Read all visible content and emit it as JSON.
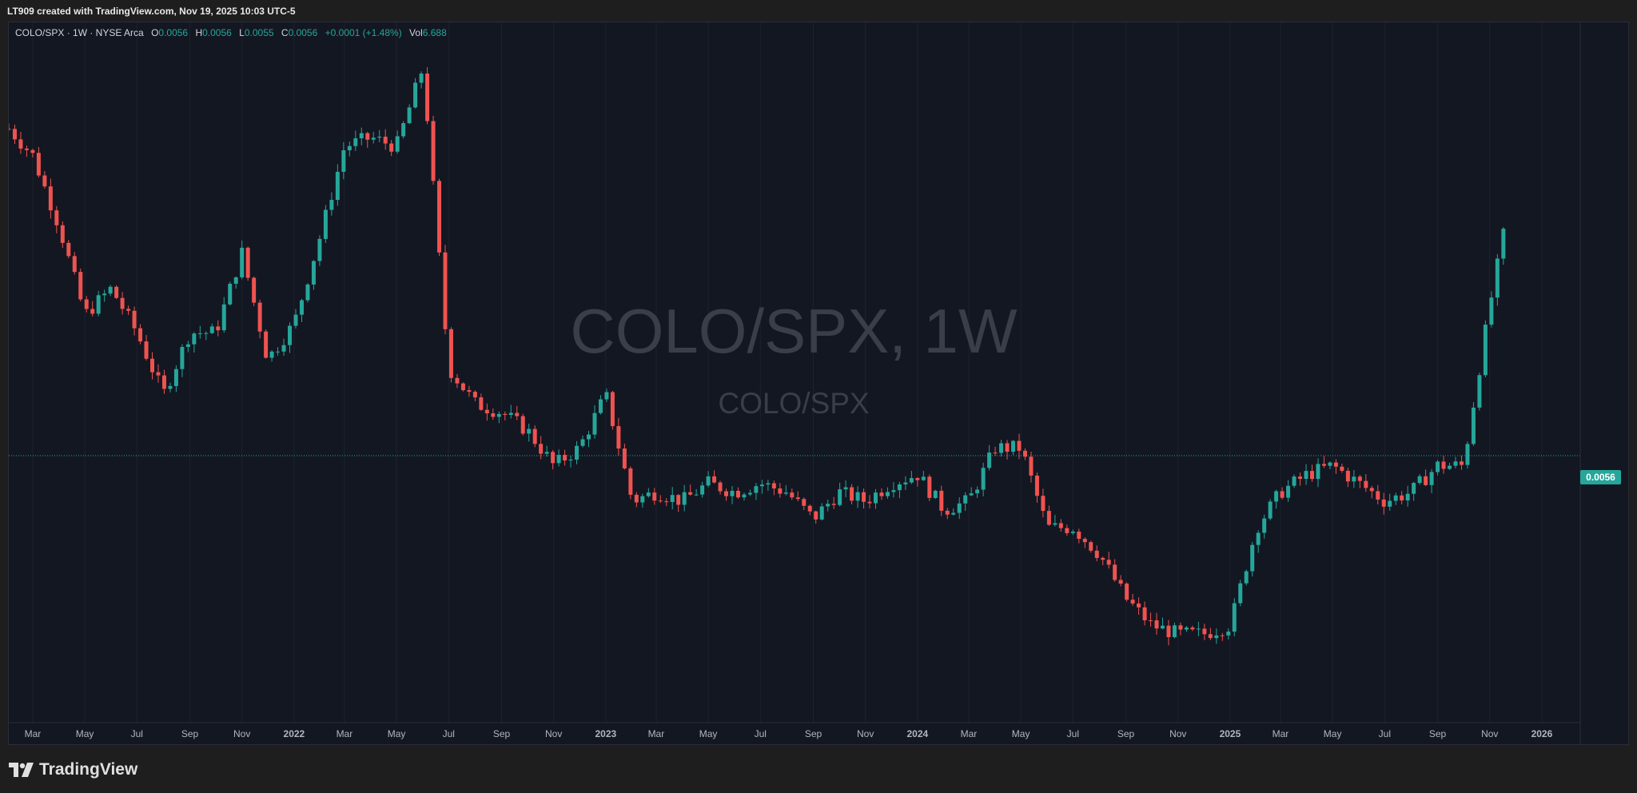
{
  "attribution": "LT909 created with TradingView.com, Nov 19, 2025 10:03 UTC-5",
  "legend": {
    "symbol": "COLO/SPX · 1W · NYSE Arca",
    "o_label": "O",
    "o_value": "0.0056",
    "h_label": "H",
    "h_value": "0.0056",
    "l_label": "L",
    "l_value": "0.0055",
    "c_label": "C",
    "c_value": "0.0056",
    "change": "+0.0001 (+1.48%)",
    "vol_label": "Vol",
    "vol_value": "6.688"
  },
  "watermark": {
    "title": "COLO/SPX, 1W",
    "subtitle": "COLO/SPX"
  },
  "current_price_label": "0.0056",
  "brand": "TradingView",
  "colors": {
    "up": "#26a69a",
    "down": "#ef5350",
    "background": "#131722",
    "grid": "#1e222d",
    "axis_text": "#b2b5be"
  },
  "chart_data": {
    "type": "candlestick",
    "interval": "1W",
    "x_range": [
      "2021-02-01",
      "2026-02-15"
    ],
    "y_range": [
      0.00505,
      0.00584
    ],
    "last_price": 0.0056,
    "x_ticks": [
      {
        "date": "2021-03-01",
        "label": "Mar"
      },
      {
        "date": "2021-05-01",
        "label": "May"
      },
      {
        "date": "2021-07-01",
        "label": "Jul"
      },
      {
        "date": "2021-09-01",
        "label": "Sep"
      },
      {
        "date": "2021-11-01",
        "label": "Nov"
      },
      {
        "date": "2022-01-01",
        "label": "2022"
      },
      {
        "date": "2022-03-01",
        "label": "Mar"
      },
      {
        "date": "2022-05-01",
        "label": "May"
      },
      {
        "date": "2022-07-01",
        "label": "Jul"
      },
      {
        "date": "2022-09-01",
        "label": "Sep"
      },
      {
        "date": "2022-11-01",
        "label": "Nov"
      },
      {
        "date": "2023-01-01",
        "label": "2023"
      },
      {
        "date": "2023-03-01",
        "label": "Mar"
      },
      {
        "date": "2023-05-01",
        "label": "May"
      },
      {
        "date": "2023-07-01",
        "label": "Jul"
      },
      {
        "date": "2023-09-01",
        "label": "Sep"
      },
      {
        "date": "2023-11-01",
        "label": "Nov"
      },
      {
        "date": "2024-01-01",
        "label": "2024"
      },
      {
        "date": "2024-03-01",
        "label": "Mar"
      },
      {
        "date": "2024-05-01",
        "label": "May"
      },
      {
        "date": "2024-07-01",
        "label": "Jul"
      },
      {
        "date": "2024-09-01",
        "label": "Sep"
      },
      {
        "date": "2024-11-01",
        "label": "Nov"
      },
      {
        "date": "2025-01-01",
        "label": "2025"
      },
      {
        "date": "2025-03-01",
        "label": "Mar"
      },
      {
        "date": "2025-05-01",
        "label": "May"
      },
      {
        "date": "2025-07-01",
        "label": "Jul"
      },
      {
        "date": "2025-09-01",
        "label": "Sep"
      },
      {
        "date": "2025-11-01",
        "label": "Nov"
      },
      {
        "date": "2026-01-01",
        "label": "2026"
      }
    ],
    "closes": [
      {
        "date": "2021-02-01",
        "value": 0.00572
      },
      {
        "date": "2021-03-01",
        "value": 0.00569
      },
      {
        "date": "2021-04-01",
        "value": 0.00561
      },
      {
        "date": "2021-05-01",
        "value": 0.00551
      },
      {
        "date": "2021-06-01",
        "value": 0.00554
      },
      {
        "date": "2021-07-01",
        "value": 0.00549
      },
      {
        "date": "2021-08-01",
        "value": 0.00542
      },
      {
        "date": "2021-09-01",
        "value": 0.00549
      },
      {
        "date": "2021-10-01",
        "value": 0.00549
      },
      {
        "date": "2021-11-01",
        "value": 0.00558
      },
      {
        "date": "2021-12-01",
        "value": 0.00546
      },
      {
        "date": "2022-01-01",
        "value": 0.0055
      },
      {
        "date": "2022-02-01",
        "value": 0.0056
      },
      {
        "date": "2022-03-01",
        "value": 0.0057
      },
      {
        "date": "2022-04-01",
        "value": 0.00571
      },
      {
        "date": "2022-05-01",
        "value": 0.0057
      },
      {
        "date": "2022-06-01",
        "value": 0.00579
      },
      {
        "date": "2022-07-01",
        "value": 0.00545
      },
      {
        "date": "2022-08-01",
        "value": 0.00541
      },
      {
        "date": "2022-09-01",
        "value": 0.0054
      },
      {
        "date": "2022-10-01",
        "value": 0.00538
      },
      {
        "date": "2022-11-01",
        "value": 0.00534
      },
      {
        "date": "2022-12-01",
        "value": 0.00536
      },
      {
        "date": "2023-01-01",
        "value": 0.00542
      },
      {
        "date": "2023-02-01",
        "value": 0.0053
      },
      {
        "date": "2023-03-01",
        "value": 0.00531
      },
      {
        "date": "2023-04-01",
        "value": 0.0053
      },
      {
        "date": "2023-05-01",
        "value": 0.00532
      },
      {
        "date": "2023-06-01",
        "value": 0.00531
      },
      {
        "date": "2023-07-01",
        "value": 0.00532
      },
      {
        "date": "2023-08-01",
        "value": 0.00531
      },
      {
        "date": "2023-09-01",
        "value": 0.00528
      },
      {
        "date": "2023-10-01",
        "value": 0.00531
      },
      {
        "date": "2023-11-01",
        "value": 0.0053
      },
      {
        "date": "2023-12-01",
        "value": 0.00532
      },
      {
        "date": "2024-01-01",
        "value": 0.00533
      },
      {
        "date": "2024-02-01",
        "value": 0.00529
      },
      {
        "date": "2024-03-01",
        "value": 0.0053
      },
      {
        "date": "2024-04-01",
        "value": 0.00536
      },
      {
        "date": "2024-05-01",
        "value": 0.00536
      },
      {
        "date": "2024-06-01",
        "value": 0.00527
      },
      {
        "date": "2024-07-01",
        "value": 0.00527
      },
      {
        "date": "2024-08-01",
        "value": 0.00524
      },
      {
        "date": "2024-09-01",
        "value": 0.00519
      },
      {
        "date": "2024-10-01",
        "value": 0.00516
      },
      {
        "date": "2024-11-01",
        "value": 0.00515
      },
      {
        "date": "2024-12-01",
        "value": 0.00515
      },
      {
        "date": "2025-01-01",
        "value": 0.00516
      },
      {
        "date": "2025-02-01",
        "value": 0.00527
      },
      {
        "date": "2025-03-01",
        "value": 0.00531
      },
      {
        "date": "2025-04-01",
        "value": 0.00533
      },
      {
        "date": "2025-05-01",
        "value": 0.00534
      },
      {
        "date": "2025-06-01",
        "value": 0.00532
      },
      {
        "date": "2025-07-01",
        "value": 0.0053
      },
      {
        "date": "2025-08-01",
        "value": 0.00531
      },
      {
        "date": "2025-09-01",
        "value": 0.00534
      },
      {
        "date": "2025-10-01",
        "value": 0.00534
      },
      {
        "date": "2025-11-01",
        "value": 0.00552
      },
      {
        "date": "2025-11-17",
        "value": 0.0056
      }
    ]
  }
}
